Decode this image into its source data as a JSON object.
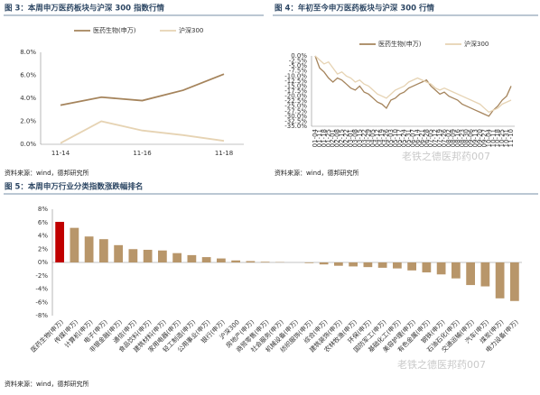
{
  "chart_data": [
    {
      "type": "line",
      "title": "图 3：本周申万医药板块与沪深 300 指数行情",
      "source": "资料来源：wind，德邦研究所",
      "categories": [
        "11-14",
        null,
        "11-16",
        null,
        "11-18"
      ],
      "series": [
        {
          "name": "医药生物(申万)",
          "color": "#a5845c",
          "values": [
            3.4,
            4.1,
            3.8,
            4.7,
            6.1
          ]
        },
        {
          "name": "沪深300",
          "color": "#e6d3b3",
          "values": [
            0.1,
            2.0,
            1.2,
            0.8,
            0.3
          ]
        }
      ],
      "ylim": [
        0,
        8
      ],
      "yticks": [
        {
          "value": 0,
          "label": "0.0%"
        },
        {
          "value": 2,
          "label": "2.0%"
        },
        {
          "value": 4,
          "label": "4.0%"
        },
        {
          "value": 6,
          "label": "6.0%"
        },
        {
          "value": 8,
          "label": "8.0%"
        }
      ],
      "legend": "top"
    },
    {
      "type": "line",
      "title": "图 4：年初至今申万医药板块与沪深 300 行情",
      "source": "资料来源：wind，德邦研究所",
      "categories": [
        "01-04",
        "01-11",
        "01-18",
        "01-25",
        "02-01",
        "02-08",
        "02-15",
        "02-22",
        "03-01",
        "03-08",
        "03-15",
        "03-22",
        "03-29",
        "04-05",
        "04-12",
        "04-19",
        "04-26",
        "05-03",
        "05-10",
        "05-17",
        "05-24",
        "05-31",
        "06-07",
        "06-14",
        "06-21",
        "06-28",
        "07-05",
        "07-12",
        "07-19",
        "07-26",
        "08-02",
        "08-09",
        "08-16",
        "08-23",
        "08-30",
        "09-06",
        "09-13",
        "09-20",
        "09-27",
        "10-04",
        "10-11",
        "10-18",
        "10-25",
        "10-31",
        "11-10"
      ],
      "series": [
        {
          "name": "医药生物(申万)",
          "color": "#a5845c",
          "values": [
            0,
            -6,
            -8,
            -11,
            -13,
            -11,
            -12,
            -14,
            -16,
            -17,
            -15,
            -18,
            -19,
            -21,
            -23,
            -24,
            -26,
            -22,
            -21,
            -19,
            -18,
            -16,
            -15,
            -14,
            -13,
            -12,
            -15,
            -17,
            -19,
            -18,
            -20,
            -21,
            -22,
            -24,
            -25,
            -26,
            -27,
            -28,
            -29,
            -30,
            -27,
            -25,
            -22,
            -20,
            -15
          ]
        },
        {
          "name": "沪深300",
          "color": "#e6d3b3",
          "values": [
            0,
            -2,
            -4,
            -3,
            -6,
            -9,
            -8,
            -10,
            -11,
            -13,
            -12,
            -14,
            -15,
            -17,
            -19,
            -20,
            -21,
            -19,
            -17,
            -16,
            -15,
            -13,
            -12,
            -11,
            -12,
            -13,
            -14,
            -16,
            -17,
            -16,
            -17,
            -18,
            -19,
            -20,
            -21,
            -22,
            -23,
            -24,
            -26,
            -28,
            -27,
            -26,
            -24,
            -23,
            -22
          ]
        }
      ],
      "ylim": [
        -35,
        0
      ],
      "yticks": [
        {
          "value": 0,
          "label": "0.0%"
        },
        {
          "value": -2.5,
          "label": "-2.5%"
        },
        {
          "value": -5,
          "label": "-5.0%"
        },
        {
          "value": -7.5,
          "label": "-7.5%"
        },
        {
          "value": -10,
          "label": "-10.0%"
        },
        {
          "value": -12.5,
          "label": "-12.5%"
        },
        {
          "value": -15,
          "label": "-15.0%"
        },
        {
          "value": -17.5,
          "label": "-17.5%"
        },
        {
          "value": -20,
          "label": "-20.0%"
        },
        {
          "value": -22.5,
          "label": "-22.5%"
        },
        {
          "value": -25,
          "label": "-25.0%"
        },
        {
          "value": -27.5,
          "label": "-27.5%"
        },
        {
          "value": -30,
          "label": "-30.0%"
        },
        {
          "value": -32.5,
          "label": "-32.5%"
        },
        {
          "value": -35,
          "label": "-35.0%"
        }
      ],
      "legend": "top"
    },
    {
      "type": "bar",
      "title": "图 5：本周申万行业分类指数涨跌幅排名",
      "source": "资料来源：wind，德邦研究所",
      "categories": [
        "医药生物(申万)",
        "传媒(申万)",
        "计算机(申万)",
        "电子(申万)",
        "非银金融(申万)",
        "通信(申万)",
        "食品饮料(申万)",
        "建筑材料(申万)",
        "家用电器(申万)",
        "轻工制造(申万)",
        "公用事业(申万)",
        "银行(申万)",
        "沪深300",
        "房地产(申万)",
        "商贸零售(申万)",
        "社会服务(申万)",
        "机械设备(申万)",
        "纺织服饰(申万)",
        "综合(申万)",
        "建筑装饰(申万)",
        "农林牧渔(申万)",
        "环保(申万)",
        "国防军工(申万)",
        "基础化工(申万)",
        "美容护理(申万)",
        "有色金属(申万)",
        "钢铁(申万)",
        "石油石化(申万)",
        "交通运输(申万)",
        "汽车(申万)",
        "煤炭(申万)",
        "电力设备(申万)"
      ],
      "values": [
        6.1,
        5.2,
        3.9,
        3.5,
        2.6,
        2.0,
        1.9,
        1.8,
        1.4,
        1.1,
        0.8,
        0.6,
        0.3,
        0.2,
        0.1,
        0.05,
        0,
        -0.1,
        -0.3,
        -0.5,
        -0.6,
        -0.7,
        -0.8,
        -0.9,
        -1.2,
        -1.5,
        -1.8,
        -2.4,
        -3.4,
        -3.6,
        -5.4,
        -5.8
      ],
      "colors": [
        "#c00000",
        "#b8966a",
        "#b8966a",
        "#b8966a",
        "#b8966a",
        "#b8966a",
        "#b8966a",
        "#b8966a",
        "#b8966a",
        "#b8966a",
        "#b8966a",
        "#b8966a",
        "#b8966a",
        "#b8966a",
        "#b8966a",
        "#b8966a",
        "#b8966a",
        "#b8966a",
        "#b8966a",
        "#b8966a",
        "#b8966a",
        "#b8966a",
        "#b8966a",
        "#b8966a",
        "#b8966a",
        "#b8966a",
        "#b8966a",
        "#b8966a",
        "#b8966a",
        "#b8966a",
        "#b8966a",
        "#b8966a"
      ],
      "ylim": [
        -8,
        8
      ],
      "yticks": [
        {
          "value": -8,
          "label": "-8%"
        },
        {
          "value": -6,
          "label": "-6%"
        },
        {
          "value": -4,
          "label": "-4%"
        },
        {
          "value": -2,
          "label": "-2%"
        },
        {
          "value": 0,
          "label": "0%"
        },
        {
          "value": 2,
          "label": "2%"
        },
        {
          "value": 4,
          "label": "4%"
        },
        {
          "value": 6,
          "label": "6%"
        },
        {
          "value": 8,
          "label": "8%"
        }
      ]
    }
  ],
  "watermarks": [
    "老铁之德医邦药007",
    "老铁之德医邦药007"
  ]
}
